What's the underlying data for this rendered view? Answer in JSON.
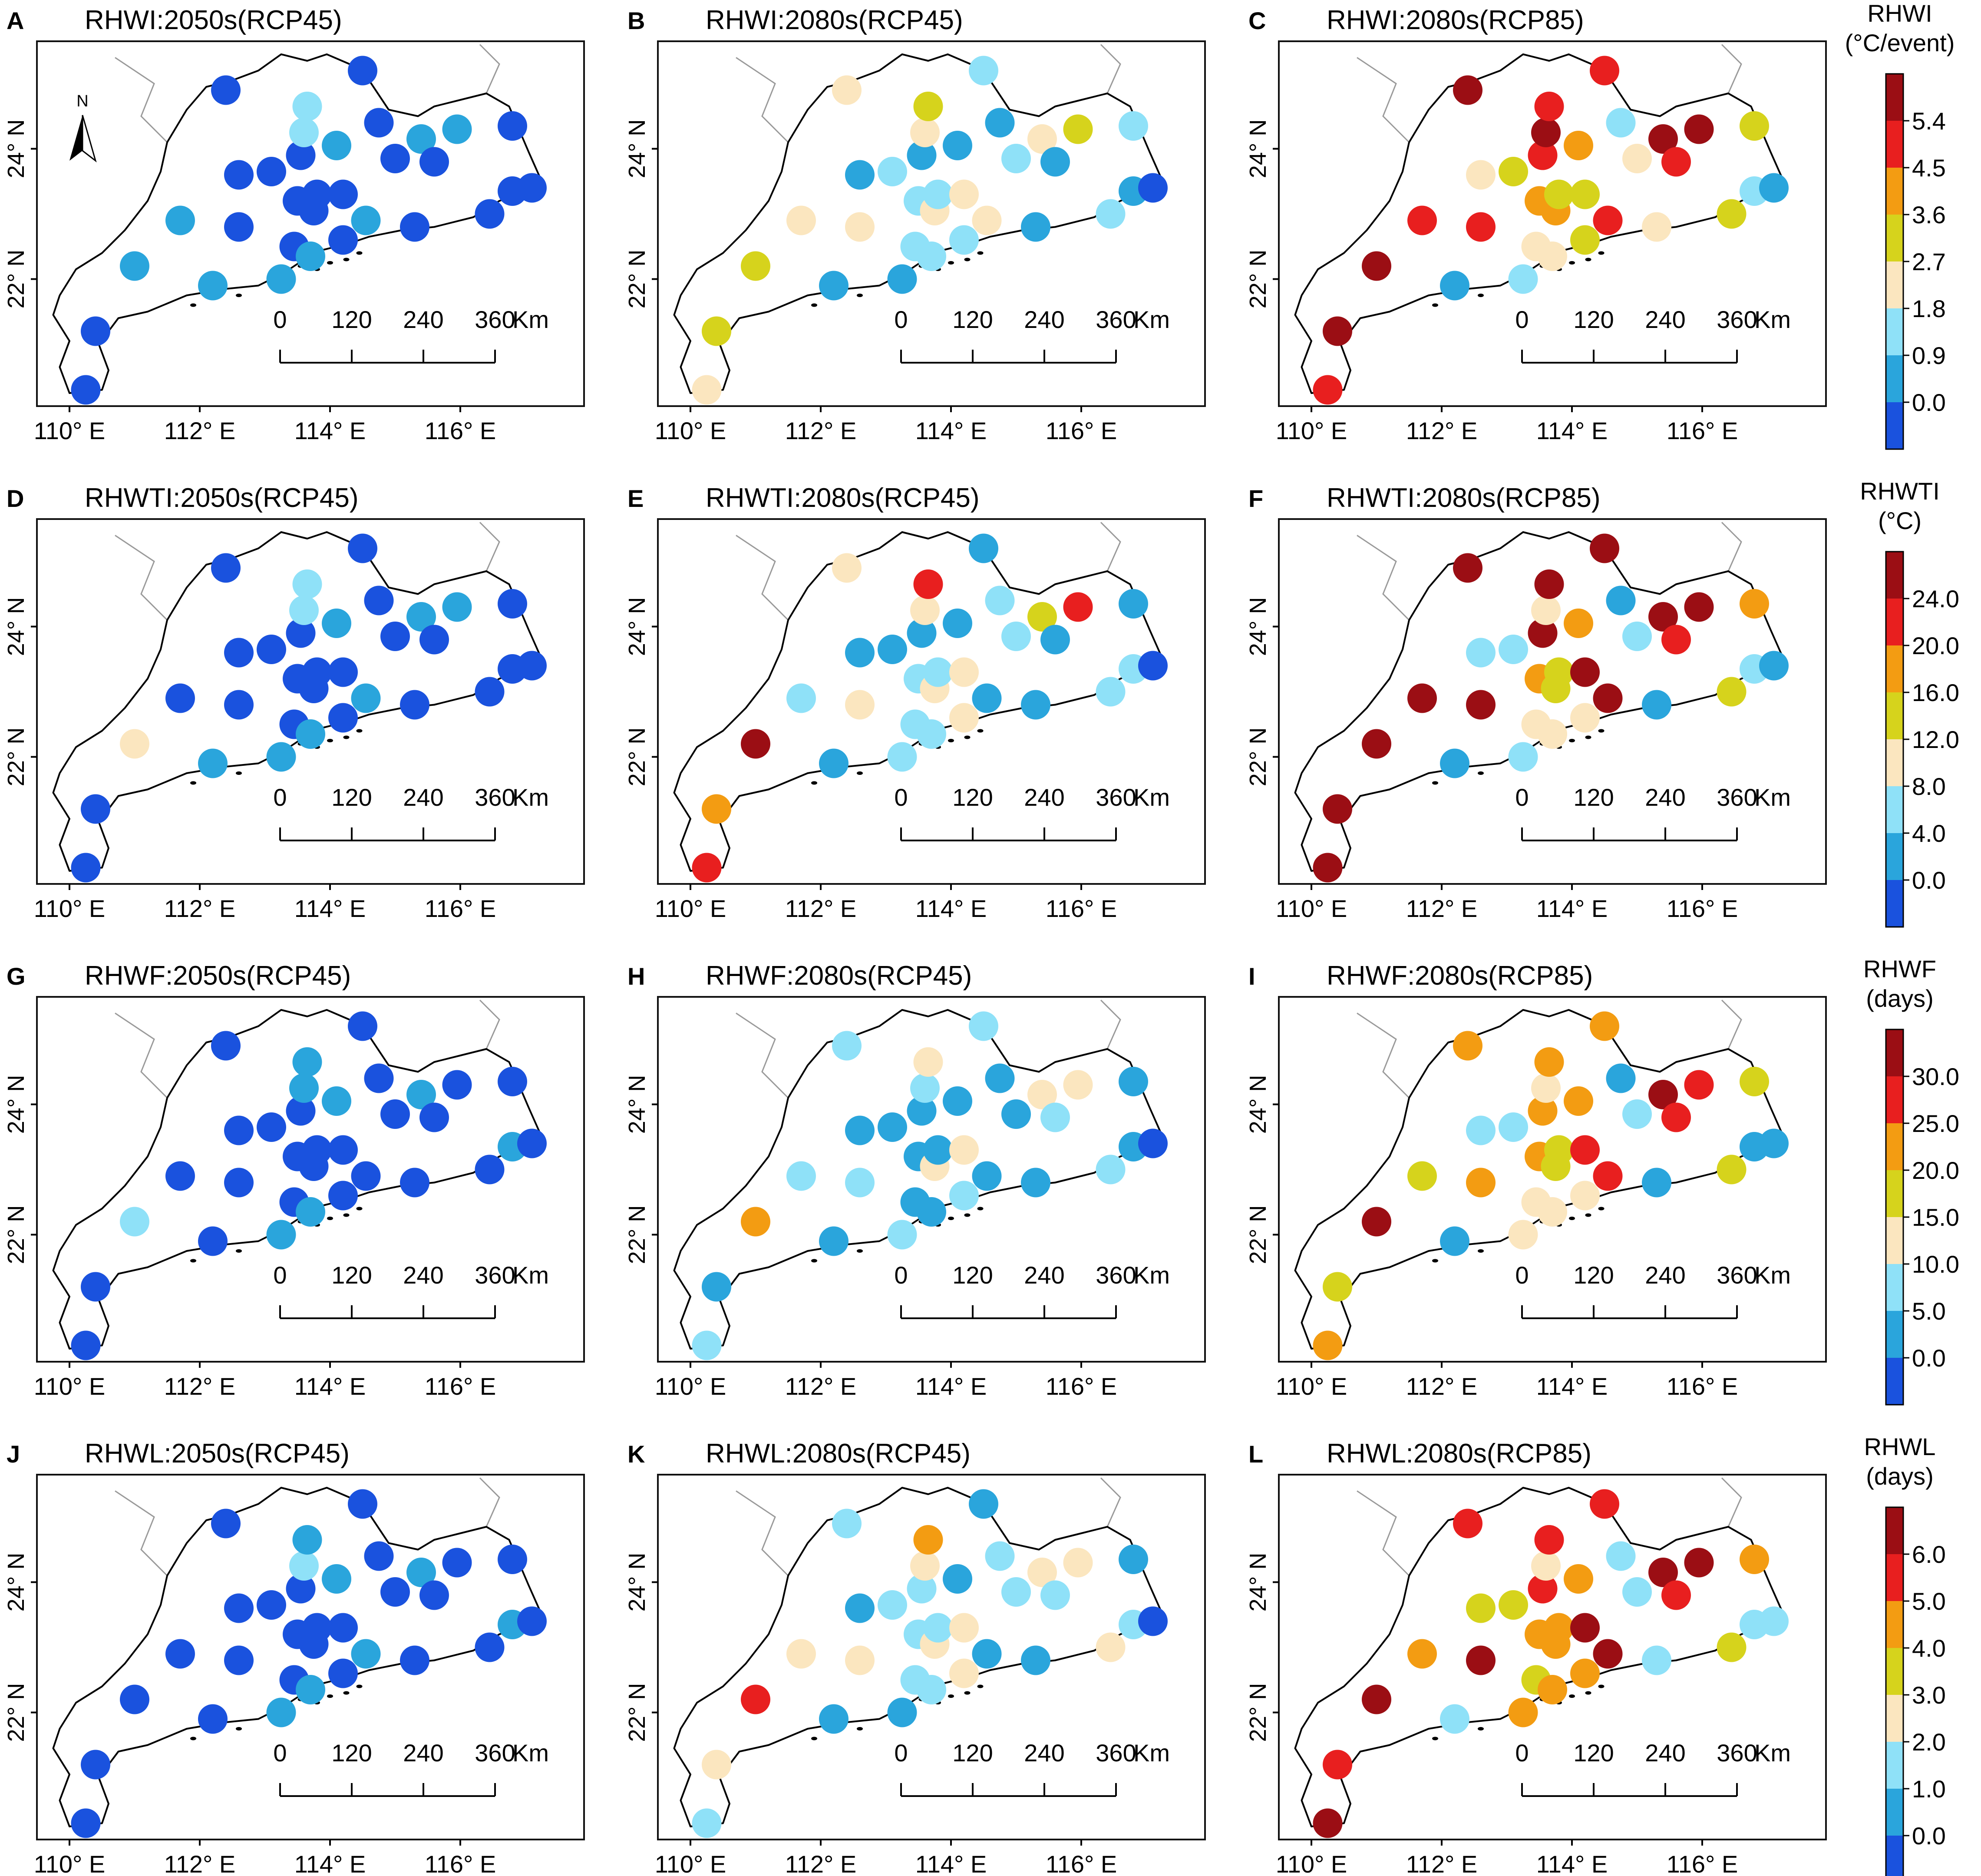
{
  "colors": {
    "ramp": [
      "#1a52de",
      "#2aa5dc",
      "#8fe1f8",
      "#fbe6bf",
      "#d6d31c",
      "#f39c12",
      "#e81f1f",
      "#9b0e14"
    ]
  },
  "compass": {
    "label": "N"
  },
  "scale_bar": {
    "ticks": [
      "0",
      "120",
      "240",
      "360"
    ],
    "unit": "Km"
  },
  "axes": {
    "x_ticks": [
      "110° E",
      "112° E",
      "114° E",
      "116° E"
    ],
    "y_ticks": [
      "22° N",
      "24° N"
    ]
  },
  "legends": [
    {
      "title": [
        "RHWI",
        "(°C/event)"
      ],
      "labels": [
        "0.0",
        "0.9",
        "1.8",
        "2.7",
        "3.6",
        "4.5",
        "5.4"
      ]
    },
    {
      "title": [
        "RHWTI",
        "(°C)"
      ],
      "labels": [
        "0.0",
        "4.0",
        "8.0",
        "12.0",
        "16.0",
        "20.0",
        "24.0"
      ]
    },
    {
      "title": [
        "RHWF",
        "(days)"
      ],
      "labels": [
        "0.0",
        "5.0",
        "10.0",
        "15.0",
        "20.0",
        "25.0",
        "30.0"
      ]
    },
    {
      "title": [
        "RHWL",
        "(days)"
      ],
      "labels": [
        "0.0",
        "1.0",
        "2.0",
        "3.0",
        "4.0",
        "5.0",
        "6.0"
      ]
    }
  ],
  "stations": [
    [
      110.25,
      20.3
    ],
    [
      110.4,
      21.2
    ],
    [
      111.0,
      22.2
    ],
    [
      111.7,
      22.9
    ],
    [
      112.2,
      21.9
    ],
    [
      112.4,
      24.9
    ],
    [
      112.6,
      23.6
    ],
    [
      112.6,
      22.8
    ],
    [
      113.1,
      23.65
    ],
    [
      113.25,
      22.0
    ],
    [
      113.45,
      22.5
    ],
    [
      113.5,
      23.2
    ],
    [
      113.55,
      23.9
    ],
    [
      113.6,
      24.25
    ],
    [
      113.7,
      22.35
    ],
    [
      113.75,
      23.05
    ],
    [
      113.8,
      23.3
    ],
    [
      113.65,
      24.65
    ],
    [
      114.1,
      24.05
    ],
    [
      114.2,
      23.3
    ],
    [
      114.2,
      22.6
    ],
    [
      114.5,
      25.2
    ],
    [
      114.75,
      24.4
    ],
    [
      114.55,
      22.9
    ],
    [
      115.0,
      23.85
    ],
    [
      115.3,
      22.8
    ],
    [
      115.4,
      24.15
    ],
    [
      115.6,
      23.8
    ],
    [
      115.95,
      24.3
    ],
    [
      116.45,
      23.0
    ],
    [
      116.8,
      24.35
    ],
    [
      116.8,
      23.35
    ],
    [
      117.1,
      23.4
    ]
  ],
  "panels": [
    {
      "letter": "A",
      "title": "RHWI:2050s(RCP45)",
      "compass": true,
      "classes": [
        0,
        0,
        1,
        1,
        1,
        0,
        0,
        0,
        0,
        1,
        0,
        0,
        0,
        2,
        1,
        0,
        0,
        2,
        1,
        0,
        0,
        0,
        0,
        1,
        0,
        0,
        1,
        0,
        1,
        0,
        0,
        0,
        0
      ]
    },
    {
      "letter": "B",
      "title": "RHWI:2080s(RCP45)",
      "classes": [
        3,
        4,
        4,
        3,
        1,
        3,
        1,
        3,
        2,
        1,
        2,
        2,
        1,
        3,
        2,
        3,
        2,
        4,
        1,
        3,
        2,
        2,
        1,
        3,
        2,
        1,
        3,
        1,
        4,
        2,
        2,
        1,
        0
      ]
    },
    {
      "letter": "C",
      "title": "RHWI:2080s(RCP85)",
      "classes": [
        6,
        7,
        7,
        6,
        1,
        7,
        3,
        6,
        4,
        2,
        3,
        5,
        6,
        7,
        3,
        5,
        4,
        6,
        5,
        4,
        4,
        6,
        2,
        6,
        3,
        3,
        7,
        6,
        7,
        4,
        4,
        2,
        1
      ]
    },
    {
      "letter": "D",
      "title": "RHWTI:2050s(RCP45)",
      "classes": [
        0,
        0,
        3,
        0,
        1,
        0,
        0,
        0,
        0,
        1,
        0,
        0,
        0,
        2,
        1,
        0,
        0,
        2,
        1,
        0,
        0,
        0,
        0,
        1,
        0,
        0,
        1,
        0,
        1,
        0,
        0,
        0,
        0
      ]
    },
    {
      "letter": "E",
      "title": "RHWTI:2080s(RCP45)",
      "classes": [
        6,
        5,
        7,
        2,
        1,
        3,
        1,
        3,
        1,
        2,
        2,
        2,
        1,
        3,
        2,
        3,
        2,
        6,
        1,
        3,
        3,
        1,
        2,
        1,
        2,
        1,
        4,
        1,
        6,
        2,
        1,
        2,
        0
      ]
    },
    {
      "letter": "F",
      "title": "RHWTI:2080s(RCP85)",
      "classes": [
        7,
        7,
        7,
        7,
        1,
        7,
        2,
        7,
        2,
        2,
        3,
        5,
        7,
        3,
        3,
        4,
        4,
        7,
        5,
        7,
        3,
        7,
        1,
        7,
        2,
        1,
        7,
        6,
        7,
        4,
        5,
        2,
        1
      ]
    },
    {
      "letter": "G",
      "title": "RHWF:2050s(RCP45)",
      "classes": [
        0,
        0,
        2,
        0,
        0,
        0,
        0,
        0,
        0,
        1,
        0,
        0,
        0,
        1,
        1,
        0,
        0,
        1,
        1,
        0,
        0,
        0,
        0,
        0,
        0,
        0,
        1,
        0,
        0,
        0,
        0,
        1,
        0
      ]
    },
    {
      "letter": "H",
      "title": "RHWF:2080s(RCP45)",
      "classes": [
        2,
        1,
        5,
        2,
        1,
        2,
        1,
        2,
        1,
        2,
        1,
        1,
        1,
        2,
        1,
        3,
        1,
        3,
        1,
        3,
        2,
        2,
        1,
        1,
        1,
        1,
        3,
        2,
        3,
        2,
        1,
        1,
        0
      ]
    },
    {
      "letter": "I",
      "title": "RHWF:2080s(RCP85)",
      "classes": [
        5,
        4,
        7,
        4,
        1,
        5,
        2,
        5,
        2,
        3,
        3,
        5,
        5,
        3,
        3,
        4,
        4,
        5,
        5,
        6,
        3,
        5,
        1,
        6,
        2,
        1,
        7,
        6,
        6,
        4,
        4,
        1,
        1
      ]
    },
    {
      "letter": "J",
      "title": "RHWL:2050s(RCP45)",
      "classes": [
        0,
        0,
        0,
        0,
        0,
        0,
        0,
        0,
        0,
        1,
        0,
        0,
        0,
        2,
        1,
        0,
        0,
        1,
        1,
        0,
        0,
        0,
        0,
        1,
        0,
        0,
        1,
        0,
        0,
        0,
        0,
        1,
        0
      ]
    },
    {
      "letter": "K",
      "title": "RHWL:2080s(RCP45)",
      "classes": [
        2,
        3,
        6,
        3,
        1,
        2,
        1,
        3,
        2,
        1,
        2,
        2,
        2,
        3,
        2,
        3,
        2,
        5,
        1,
        3,
        3,
        1,
        2,
        1,
        2,
        1,
        3,
        2,
        3,
        3,
        1,
        2,
        0
      ]
    },
    {
      "letter": "L",
      "title": "RHWL:2080s(RCP85)",
      "classes": [
        7,
        6,
        7,
        5,
        2,
        6,
        4,
        7,
        4,
        5,
        4,
        5,
        6,
        3,
        5,
        5,
        5,
        6,
        5,
        7,
        5,
        6,
        2,
        7,
        2,
        2,
        7,
        6,
        7,
        4,
        5,
        2,
        2
      ]
    }
  ]
}
